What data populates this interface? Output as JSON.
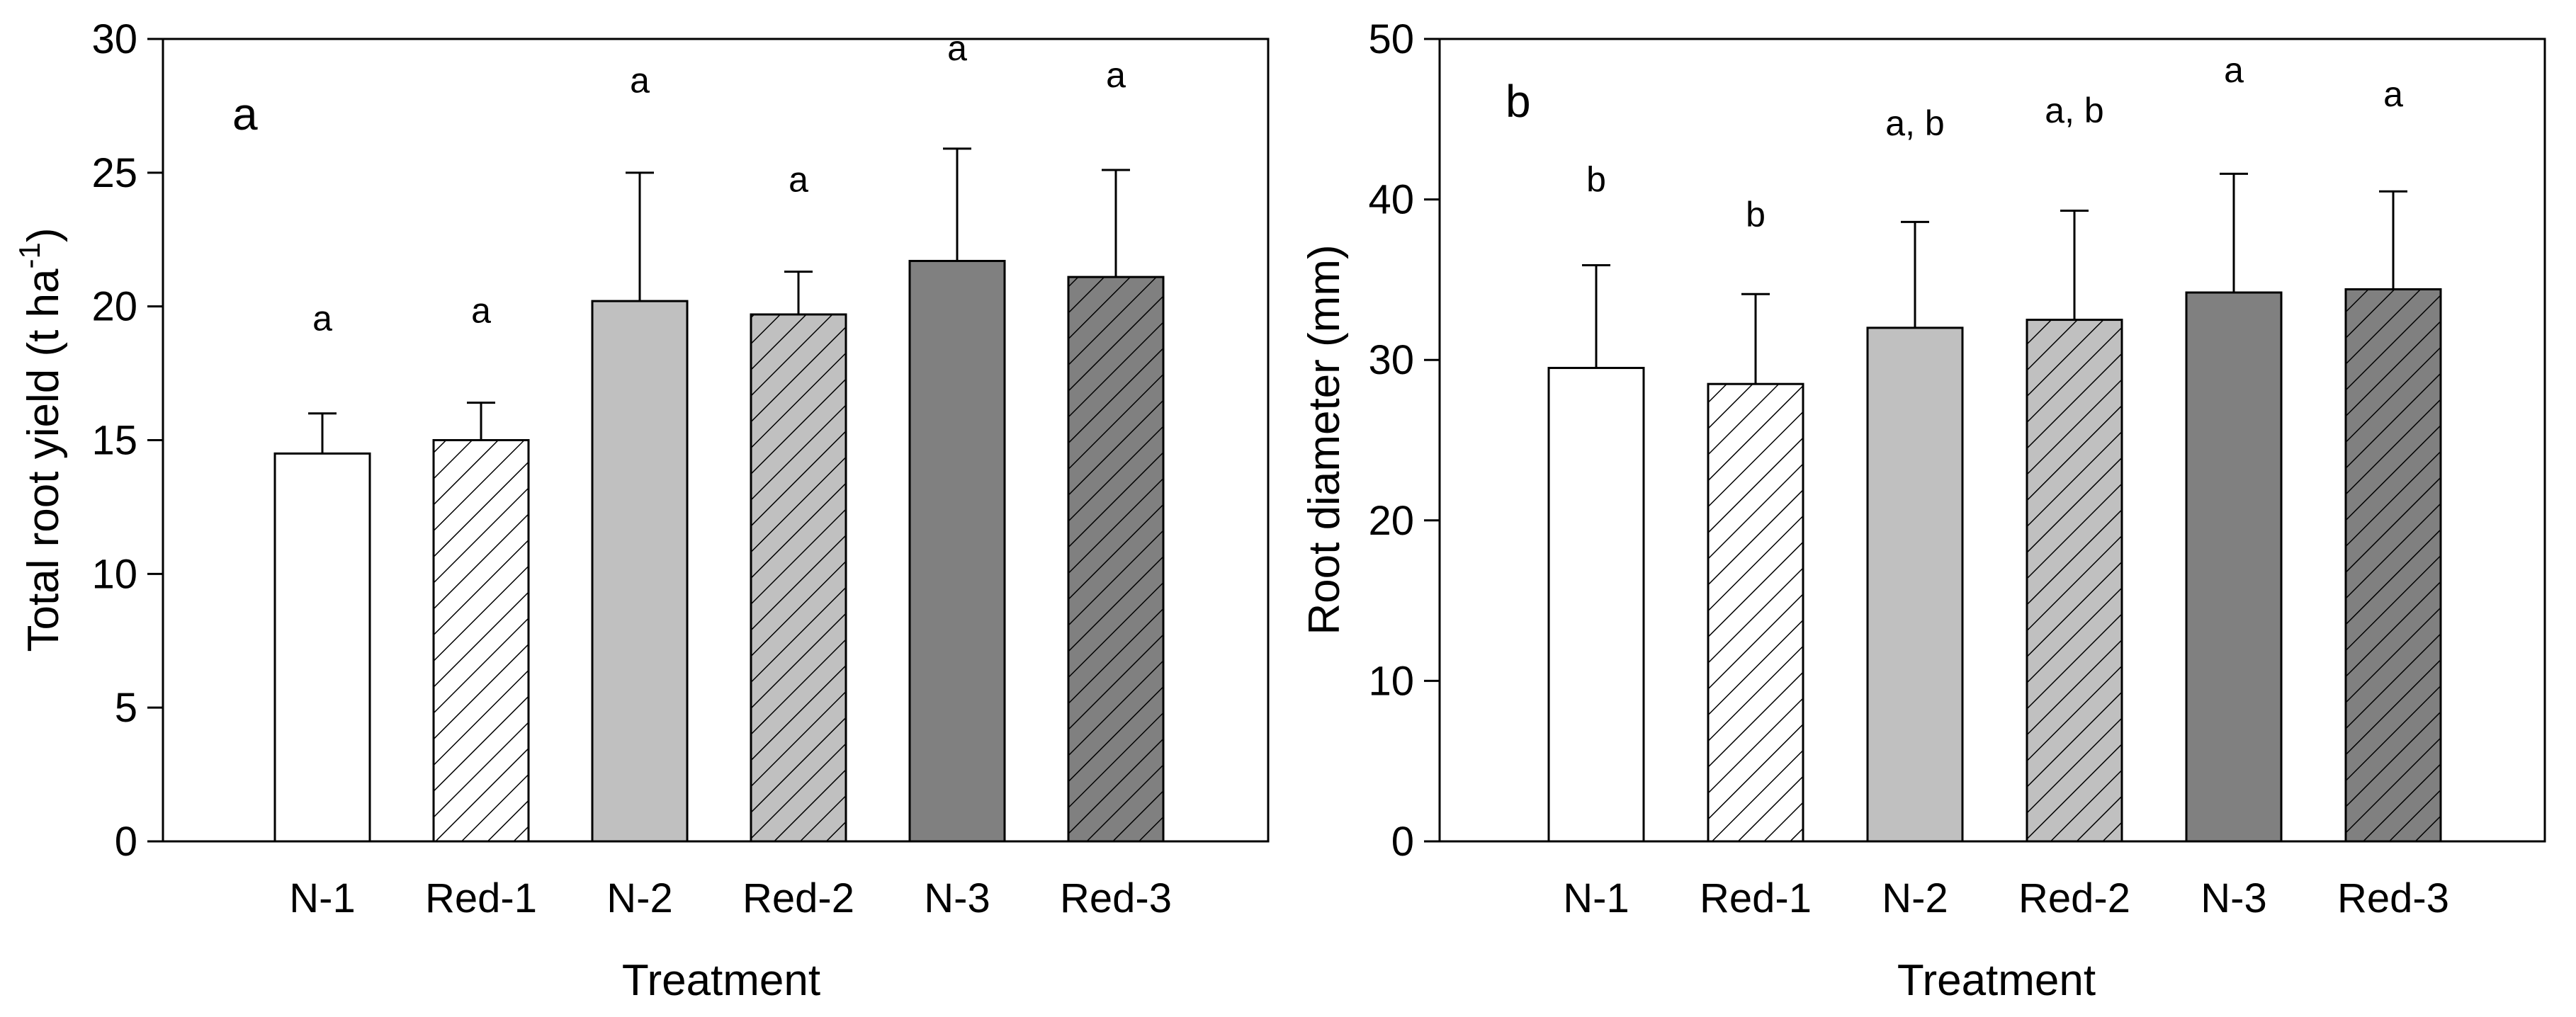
{
  "chart_data": [
    {
      "type": "bar",
      "panel_label": "a",
      "categories": [
        "N-1",
        "Red-1",
        "N-2",
        "Red-2",
        "N-3",
        "Red-3"
      ],
      "values": [
        14.5,
        15.0,
        20.2,
        19.7,
        21.7,
        21.1
      ],
      "errors": [
        1.5,
        1.4,
        4.8,
        1.6,
        4.2,
        4.0
      ],
      "significance": [
        "a",
        "a",
        "a",
        "a",
        "a",
        "a"
      ],
      "sig_values": [
        19.1,
        19.4,
        28.0,
        24.3,
        29.2,
        28.2
      ],
      "xlabel": "Treatment",
      "ylabel": "Total root yield (t ha",
      "ylabel_exp": "-1",
      "ylabel_close": ")",
      "ylim": [
        0,
        30
      ],
      "yticks": [
        "0",
        "5",
        "10",
        "15",
        "20",
        "25",
        "30"
      ],
      "ytick_values": [
        0,
        5,
        10,
        15,
        20,
        25,
        30
      ]
    },
    {
      "type": "bar",
      "panel_label": "b",
      "categories": [
        "N-1",
        "Red-1",
        "N-2",
        "Red-2",
        "N-3",
        "Red-3"
      ],
      "values": [
        29.5,
        28.5,
        32.0,
        32.5,
        34.2,
        34.4
      ],
      "errors": [
        6.4,
        5.6,
        6.6,
        6.8,
        7.4,
        6.1
      ],
      "significance": [
        "b",
        "b",
        "a, b",
        "a, b",
        "a",
        "a"
      ],
      "sig_values": [
        40.5,
        38.3,
        44.0,
        44.8,
        47.3,
        45.8
      ],
      "xlabel": "Treatment",
      "ylabel": "Root diameter (mm)",
      "ylim": [
        0,
        50
      ],
      "yticks": [
        "0",
        "10",
        "20",
        "30",
        "40",
        "50"
      ],
      "ytick_values": [
        0,
        10,
        20,
        30,
        40,
        50
      ]
    }
  ],
  "series_style": {
    "N-1": {
      "fill": "#ffffff",
      "hatch": false
    },
    "Red-1": {
      "fill": "#ffffff",
      "hatch": true
    },
    "N-2": {
      "fill": "#c0c0c0",
      "hatch": false
    },
    "Red-2": {
      "fill": "#c0c0c0",
      "hatch": true
    },
    "N-3": {
      "fill": "#808080",
      "hatch": false
    },
    "Red-3": {
      "fill": "#808080",
      "hatch": true
    }
  }
}
